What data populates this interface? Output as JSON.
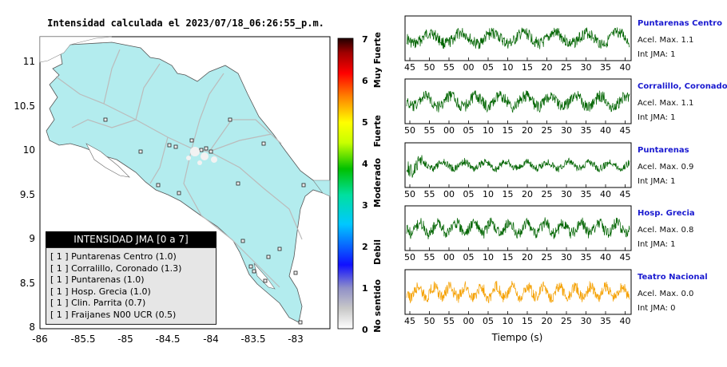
{
  "map": {
    "title": "Intensidad calculada el 2023/07/18_06:26:55_p.m.",
    "lat_ticks": [
      "11",
      "10.5",
      "10",
      "9.5",
      "9",
      "8.5",
      "8"
    ],
    "lon_ticks": [
      "-86",
      "-85.5",
      "-85",
      "-84.5",
      "-84",
      "-83.5",
      "-83"
    ],
    "land_color": "#b3ecee",
    "station_marker_color": "#e8e8e8"
  },
  "colorbar": {
    "ticks": [
      "7",
      "6",
      "5",
      "4",
      "3",
      "2",
      "1",
      "0"
    ],
    "categories": [
      "Muy Fuerte",
      "Fuerte",
      "Moderado",
      "Debil",
      "No sentido"
    ]
  },
  "legend": {
    "header": "INTENSIDAD JMA [0 a 7]",
    "items": [
      "[ 1 ]  Puntarenas Centro (1.0)",
      "[ 1 ]  Corralillo, Coronado (1.3)",
      "[ 1 ]  Puntarenas (1.0)",
      "[ 1 ]  Hosp. Grecia (1.0)",
      "[ 1 ]  Clin. Parrita (0.7)",
      "[ 1 ]  Fraijanes N00 UCR (0.5)"
    ]
  },
  "traces": [
    {
      "name": "Puntarenas Centro",
      "accel": "Acel. Max. 1.1",
      "jma": "Int JMA: 1",
      "color": "#006400",
      "ticks": [
        "45",
        "50",
        "55",
        "00",
        "05",
        "10",
        "15",
        "20",
        "25",
        "30",
        "35",
        "40"
      ]
    },
    {
      "name": "Corralillo, Coronado",
      "accel": "Acel. Max. 1.1",
      "jma": "Int JMA: 1",
      "color": "#006400",
      "ticks": [
        "50",
        "55",
        "00",
        "05",
        "10",
        "15",
        "20",
        "25",
        "30",
        "35",
        "40",
        "45"
      ]
    },
    {
      "name": "Puntarenas",
      "accel": "Acel. Max. 0.9",
      "jma": "Int JMA: 1",
      "color": "#006400",
      "ticks": [
        "50",
        "55",
        "00",
        "05",
        "10",
        "15",
        "20",
        "25",
        "30",
        "35",
        "40",
        "45"
      ]
    },
    {
      "name": "Hosp. Grecia",
      "accel": "Acel. Max. 0.8",
      "jma": "Int JMA: 1",
      "color": "#006400",
      "ticks": [
        "50",
        "55",
        "00",
        "05",
        "10",
        "15",
        "20",
        "25",
        "30",
        "35",
        "40",
        "45"
      ]
    },
    {
      "name": "Teatro Nacional",
      "accel": "Acel. Max. 0.0",
      "jma": "Int JMA: 0",
      "color": "#f5a000",
      "ticks": [
        "45",
        "50",
        "55",
        "00",
        "05",
        "10",
        "15",
        "20",
        "25",
        "30",
        "35",
        "40"
      ]
    }
  ],
  "time_axis_label": "Tiempo (s)"
}
